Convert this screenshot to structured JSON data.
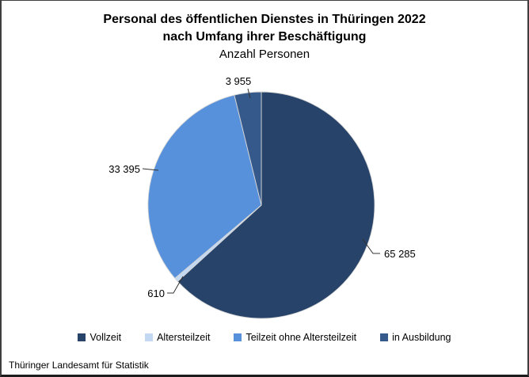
{
  "header": {
    "title_line1": "Personal des öffentlichen Dienstes in Thüringen 2022",
    "title_line2": "nach Umfang ihrer Beschäftigung",
    "subtitle": "Anzahl Personen"
  },
  "footer": {
    "source": "Thüringer Landesamt für Statistik"
  },
  "chart_data": {
    "type": "pie",
    "title": "Personal des öffentlichen Dienstes in Thüringen 2022 nach Umfang ihrer Beschäftigung",
    "subtitle": "Anzahl Personen",
    "categories": [
      "Vollzeit",
      "Altersteilzeit",
      "Teilzeit ohne Altersteilzeit",
      "in Ausbildung"
    ],
    "values": [
      65285,
      610,
      33395,
      3955
    ],
    "labels_formatted": [
      "65 285",
      "610",
      "33 395",
      "3 955"
    ],
    "colors": [
      "#274369",
      "#C3D9F3",
      "#5891DB",
      "#36598C"
    ],
    "total": 103245,
    "start_angle_deg": 0,
    "direction": "clockwise",
    "legend_position": "bottom",
    "slice_border_color": "#d6d6d6",
    "leader_line_color": "#333333"
  }
}
